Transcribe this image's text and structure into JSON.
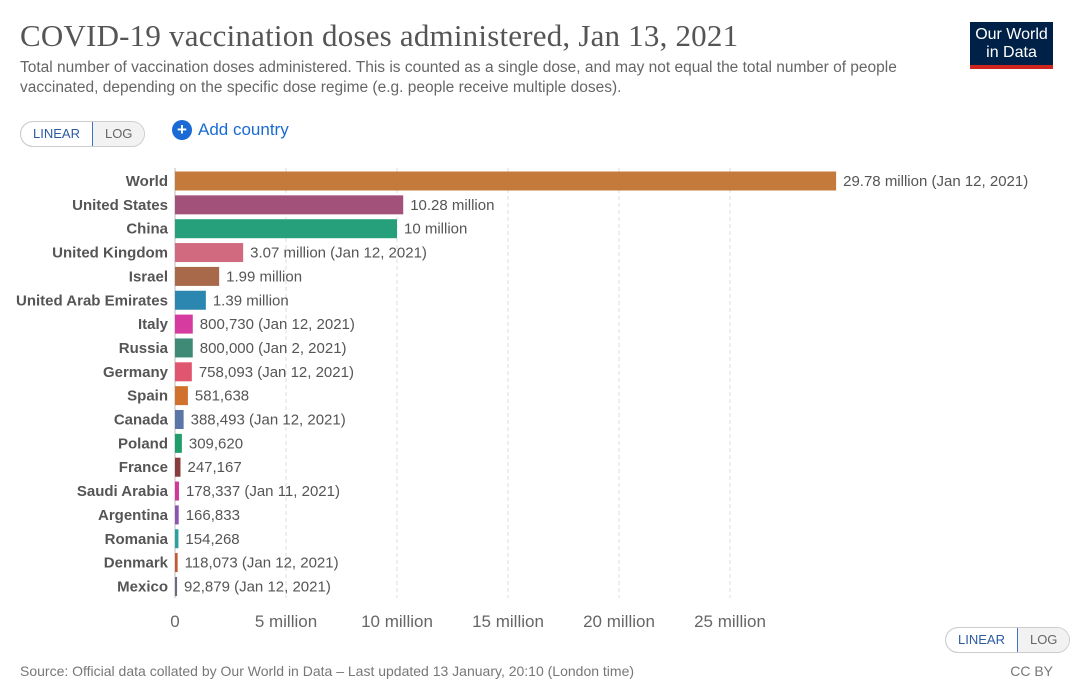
{
  "header": {
    "title": "COVID-19 vaccination doses administered, Jan 13, 2021",
    "subtitle": "Total number of vaccination doses administered. This is counted as a single dose, and may not equal the total number of people vaccinated, depending on the specific dose regime (e.g. people receive multiple doses).",
    "logo_line1": "Our World",
    "logo_line2": "in Data"
  },
  "controls": {
    "linear_label": "LINEAR",
    "log_label": "LOG",
    "add_country_label": "Add country",
    "add_country_icon": "plus-circle-icon"
  },
  "footer": {
    "source": "Source: Official data collated by Our World in Data – Last updated 13 January, 20:10 (London time)",
    "license": "CC BY"
  },
  "chart_data": {
    "type": "bar",
    "orientation": "horizontal",
    "xlim": [
      0,
      30000000
    ],
    "x_ticks": [
      0,
      5000000,
      10000000,
      15000000,
      20000000,
      25000000
    ],
    "x_tick_labels": [
      "0",
      "5 million",
      "10 million",
      "15 million",
      "20 million",
      "25 million"
    ],
    "grid": true,
    "bars": [
      {
        "name": "World",
        "value": 29780000,
        "label": "29.78 million (Jan 12, 2021)",
        "color": "#c47a3a"
      },
      {
        "name": "United States",
        "value": 10280000,
        "label": "10.28 million",
        "color": "#a2527a"
      },
      {
        "name": "China",
        "value": 10000000,
        "label": "10 million",
        "color": "#26a07a"
      },
      {
        "name": "United Kingdom",
        "value": 3070000,
        "label": "3.07 million (Jan 12, 2021)",
        "color": "#d16a7e"
      },
      {
        "name": "Israel",
        "value": 1990000,
        "label": "1.99 million",
        "color": "#a8694a"
      },
      {
        "name": "United Arab Emirates",
        "value": 1390000,
        "label": "1.39 million",
        "color": "#2c87b0"
      },
      {
        "name": "Italy",
        "value": 800730,
        "label": "800,730 (Jan 12, 2021)",
        "color": "#d63ba0"
      },
      {
        "name": "Russia",
        "value": 800000,
        "label": "800,000 (Jan 2, 2021)",
        "color": "#3f8a76"
      },
      {
        "name": "Germany",
        "value": 758093,
        "label": "758,093 (Jan 12, 2021)",
        "color": "#e0566e"
      },
      {
        "name": "Spain",
        "value": 581638,
        "label": "581,638",
        "color": "#d0712e"
      },
      {
        "name": "Canada",
        "value": 388493,
        "label": "388,493 (Jan 12, 2021)",
        "color": "#5a76a8"
      },
      {
        "name": "Poland",
        "value": 309620,
        "label": "309,620",
        "color": "#1f9d6a"
      },
      {
        "name": "France",
        "value": 247167,
        "label": "247,167",
        "color": "#8a3b3b"
      },
      {
        "name": "Saudi Arabia",
        "value": 178337,
        "label": "178,337 (Jan 11, 2021)",
        "color": "#d0389a"
      },
      {
        "name": "Argentina",
        "value": 166833,
        "label": "166,833",
        "color": "#8a55b0"
      },
      {
        "name": "Romania",
        "value": 154268,
        "label": "154,268",
        "color": "#2aa0a0"
      },
      {
        "name": "Denmark",
        "value": 118073,
        "label": "118,073 (Jan 12, 2021)",
        "color": "#c4582e"
      },
      {
        "name": "Mexico",
        "value": 92879,
        "label": "92,879 (Jan 12, 2021)",
        "color": "#6a6a80"
      }
    ]
  }
}
